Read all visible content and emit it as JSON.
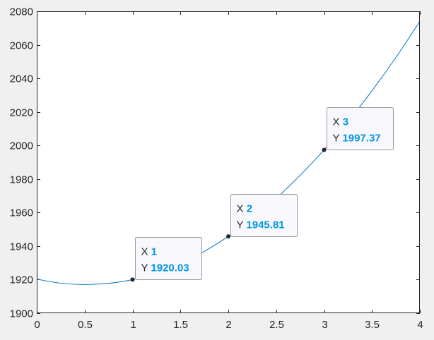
{
  "chart_data": {
    "type": "line",
    "title": "",
    "xlabel": "",
    "ylabel": "",
    "xlim": [
      0,
      4
    ],
    "ylim": [
      1900,
      2080
    ],
    "x_ticks": [
      0,
      0.5,
      1,
      1.5,
      2,
      2.5,
      3,
      3.5,
      4
    ],
    "x_tick_labels": [
      "0",
      "0.5",
      "1",
      "1.5",
      "2",
      "2.5",
      "3",
      "3.5",
      "4"
    ],
    "y_ticks": [
      1900,
      1920,
      1940,
      1960,
      1980,
      2000,
      2020,
      2040,
      2060,
      2080
    ],
    "y_tick_labels": [
      "1900",
      "1920",
      "1940",
      "1960",
      "1980",
      "2000",
      "2020",
      "2040",
      "2060",
      "2080"
    ],
    "grid": false,
    "series": [
      {
        "color": "#0072bd",
        "x": [
          0,
          0.25,
          0.5,
          0.75,
          1,
          1.25,
          1.5,
          1.75,
          2,
          2.25,
          2.5,
          2.75,
          3,
          3.25,
          3.5,
          3.75,
          4
        ],
        "y": [
          1920.3,
          1917.9,
          1917.1,
          1917.8,
          1920.03,
          1924.0,
          1929.6,
          1936.9,
          1945.81,
          1956.3,
          1968.5,
          1982.2,
          1997.37,
          2014.2,
          2032.6,
          2052.5,
          2074.0
        ]
      }
    ],
    "datatips": [
      {
        "x_key": "X",
        "x_value": "1",
        "y_key": "Y",
        "y_value": "1920.03",
        "x": 1,
        "y": 1920.03
      },
      {
        "x_key": "X",
        "x_value": "2",
        "y_key": "Y",
        "y_value": "1945.81",
        "x": 2,
        "y": 1945.81
      },
      {
        "x_key": "X",
        "x_value": "3",
        "y_key": "Y",
        "y_value": "1997.37",
        "x": 3,
        "y": 1997.37
      }
    ],
    "colors": {
      "line": "#0072bd",
      "datatip_value": "#0096e6",
      "marker": "#262626",
      "axes": "#262626",
      "figure_bg": "#f0f0f0",
      "plot_bg": "#ffffff"
    }
  }
}
